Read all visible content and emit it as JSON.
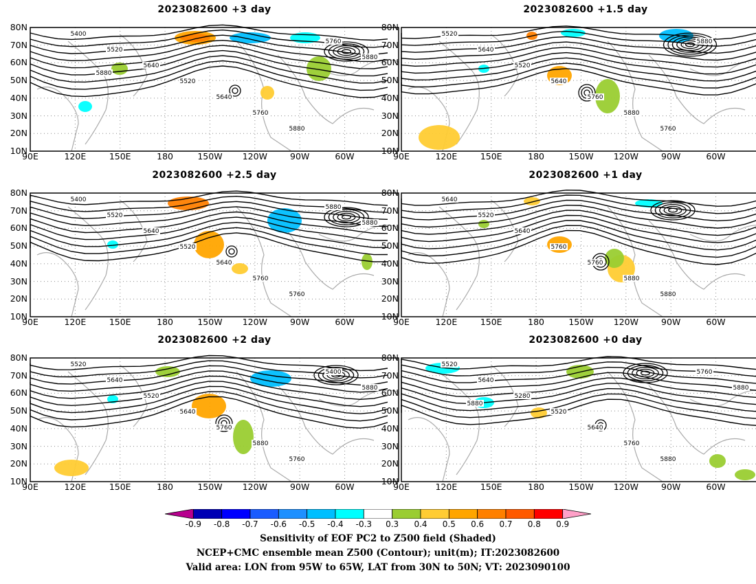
{
  "panels": [
    {
      "title": "2023082600 +3 day",
      "col": 0,
      "row": 0,
      "variant": 0,
      "extra_labels": [
        "5400",
        "5520",
        "5640",
        "5520",
        "5640",
        "5760",
        "5880",
        "5760",
        "5880",
        "5880"
      ]
    },
    {
      "title": "2023082600 +1.5 day",
      "col": 1,
      "row": 0,
      "variant": 1,
      "extra_labels": [
        "5520",
        "5640",
        "5520",
        "5640",
        "5760",
        "5880",
        "5760",
        "5880"
      ]
    },
    {
      "title": "2023082600 +2.5 day",
      "col": 0,
      "row": 1,
      "variant": 2,
      "extra_labels": [
        "5400",
        "5520",
        "5640",
        "5520",
        "5640",
        "5760",
        "5760",
        "5880",
        "5880"
      ]
    },
    {
      "title": "2023082600 +1 day",
      "col": 1,
      "row": 1,
      "variant": 3,
      "extra_labels": [
        "5640",
        "5520",
        "5640",
        "5760",
        "5760",
        "5880",
        "5880"
      ]
    },
    {
      "title": "2023082600 +2 day",
      "col": 0,
      "row": 2,
      "variant": 4,
      "extra_labels": [
        "5520",
        "5640",
        "5520",
        "5640",
        "5760",
        "5880",
        "5760",
        "5400",
        "5880"
      ]
    },
    {
      "title": "2023082600 +0 day",
      "col": 1,
      "row": 2,
      "variant": 5,
      "extra_labels": [
        "5520",
        "5640",
        "5280",
        "5520",
        "5640",
        "5760",
        "5880",
        "5760",
        "5880",
        "5880"
      ]
    }
  ],
  "lat_labels": [
    "80N",
    "70N",
    "60N",
    "50N",
    "40N",
    "30N",
    "20N",
    "10N"
  ],
  "lon_labels": [
    "90E",
    "120E",
    "150E",
    "180",
    "150W",
    "120W",
    "90W",
    "60W"
  ],
  "colorbar": {
    "colors": [
      "#b7008e",
      "#0000b4",
      "#0000ff",
      "#1a5cff",
      "#1e90ff",
      "#00bfff",
      "#00ffff",
      "#ffffff",
      "#9acd32",
      "#ffcc33",
      "#ffa500",
      "#ff8000",
      "#ff5a00",
      "#ff0000",
      "#ffa0c8"
    ],
    "labels": [
      "-0.9",
      "-0.8",
      "-0.7",
      "-0.6",
      "-0.5",
      "-0.4",
      "-0.3",
      "0.3",
      "0.4",
      "0.5",
      "0.6",
      "0.7",
      "0.8",
      "0.9"
    ]
  },
  "captions": [
    "Sensitivity of EOF PC2 to Z500 field (Shaded)",
    "NCEP+CMC ensemble mean Z500 (Contour); unit(m); IT:2023082600",
    "Valid area: LON from 95W to 65W, LAT from 30N to 50N; VT: 2023090100"
  ]
}
